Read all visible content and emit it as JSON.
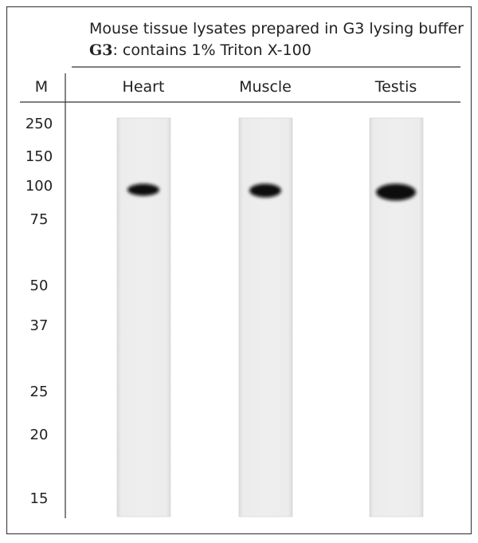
{
  "header": {
    "line1": "Mouse tissue lysates prepared in G3 lysing buffer",
    "line2_bold": "G3",
    "line2_rest": ":  contains 1% Triton X-100"
  },
  "columns": {
    "marker": "M",
    "lanes": [
      "Heart",
      "Muscle",
      "Testis"
    ]
  },
  "markers": [
    250,
    150,
    100,
    75,
    50,
    37,
    25,
    20,
    15
  ]
}
